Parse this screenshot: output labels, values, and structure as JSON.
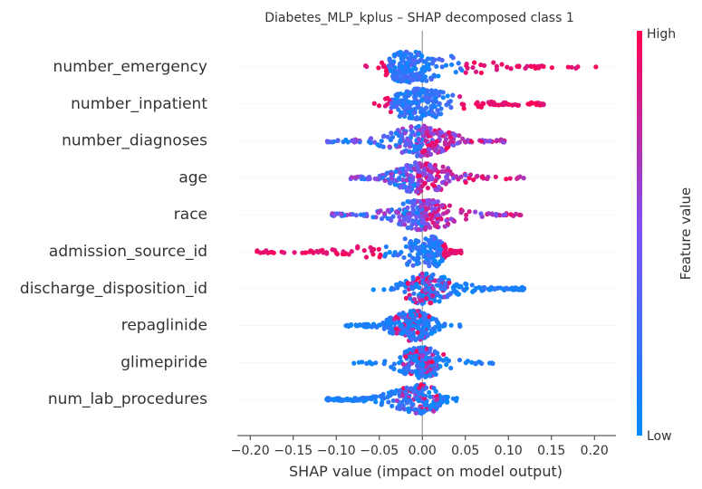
{
  "chart_data": {
    "type": "scatter",
    "subtype": "shap-beeswarm",
    "title": "Diabetes_MLP_kplus – SHAP decomposed class 1",
    "xlabel": "SHAP value (impact on model output)",
    "xlim": [
      -0.215,
      0.225
    ],
    "xticks": [
      -0.2,
      -0.15,
      -0.1,
      -0.05,
      0.0,
      0.05,
      0.1,
      0.15,
      0.2
    ],
    "xtick_labels": [
      "−0.20",
      "−0.15",
      "−0.10",
      "−0.05",
      "0.00",
      "0.05",
      "0.10",
      "0.15",
      "0.20"
    ],
    "grid": false,
    "colorbar": {
      "label": "Feature value",
      "high_label": "High",
      "low_label": "Low",
      "low_color": "#008bfb",
      "mid_color": "#7c52f5",
      "high_color": "#ff0052"
    },
    "features": [
      {
        "name": "number_emergency",
        "min": -0.09,
        "max": 0.205,
        "center": -0.02,
        "spread": 0.022,
        "core": 0.7,
        "tail": "right",
        "tail_color": "high"
      },
      {
        "name": "number_inpatient",
        "min": -0.097,
        "max": 0.145,
        "center": -0.01,
        "spread": 0.03,
        "core": 0.6,
        "tail": "right",
        "tail_color": "high"
      },
      {
        "name": "number_diagnoses",
        "min": -0.115,
        "max": 0.1,
        "center": 0.0,
        "spread": 0.032,
        "core": 0.5,
        "tail": "both",
        "tail_color": "mixed"
      },
      {
        "name": "age",
        "min": -0.085,
        "max": 0.12,
        "center": -0.005,
        "spread": 0.032,
        "core": 0.5,
        "tail": "both",
        "tail_color": "mixed"
      },
      {
        "name": "race",
        "min": -0.105,
        "max": 0.12,
        "center": 0.0,
        "spread": 0.03,
        "core": 0.5,
        "tail": "both",
        "tail_color": "mixed"
      },
      {
        "name": "admission_source_id",
        "min": -0.195,
        "max": 0.045,
        "center": 0.015,
        "spread": 0.025,
        "core": 0.6,
        "tail": "left",
        "tail_color": "high"
      },
      {
        "name": "discharge_disposition_id",
        "min": -0.065,
        "max": 0.12,
        "center": 0.0,
        "spread": 0.028,
        "core": 0.5,
        "tail": "right",
        "tail_color": "low"
      },
      {
        "name": "repaglinide",
        "min": -0.09,
        "max": 0.055,
        "center": -0.01,
        "spread": 0.025,
        "core": 0.7,
        "tail": "left",
        "tail_color": "low"
      },
      {
        "name": "glimepiride",
        "min": -0.085,
        "max": 0.085,
        "center": 0.0,
        "spread": 0.018,
        "core": 0.7,
        "tail": "both",
        "tail_color": "low"
      },
      {
        "name": "num_lab_procedures",
        "min": -0.115,
        "max": 0.048,
        "center": 0.005,
        "spread": 0.03,
        "core": 0.5,
        "tail": "left",
        "tail_color": "low"
      }
    ]
  }
}
